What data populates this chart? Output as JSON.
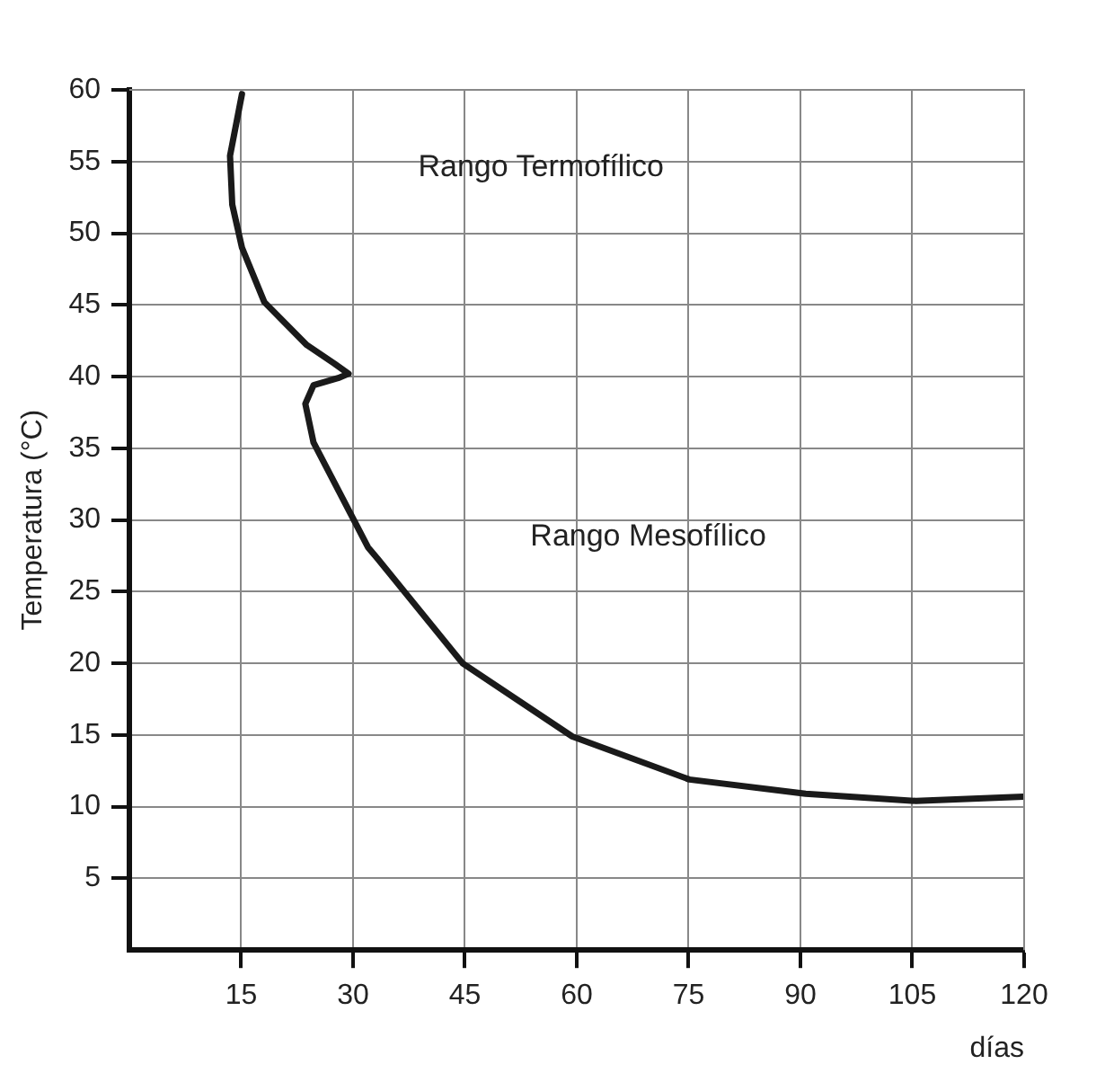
{
  "chart_data": {
    "type": "line",
    "xlabel": "días",
    "ylabel": "Temperatura (°C)",
    "series": [
      {
        "color": "#1a1a1a",
        "x": [
          15.1,
          13.5,
          13.8,
          15.1,
          18.1,
          23.8,
          27.5,
          29.4,
          28,
          24.7,
          23.6,
          24.7,
          28.1,
          32,
          33.3,
          44.7,
          59.4,
          75.1,
          90.7,
          105.5,
          119.9
        ],
        "values": [
          59.7,
          55.4,
          52,
          49,
          45.2,
          42.2,
          40.9,
          40.2,
          39.9,
          39.4,
          38.1,
          35.4,
          32,
          28.1,
          27.3,
          20,
          14.9,
          11.9,
          10.9,
          10.4,
          10.7
        ]
      }
    ],
    "xlim": [
      0,
      120
    ],
    "ylim": [
      0,
      60
    ],
    "xticks": [
      15,
      30,
      45,
      60,
      75,
      90,
      105,
      120
    ],
    "yticks": [
      5,
      10,
      15,
      20,
      25,
      30,
      35,
      40,
      45,
      50,
      55,
      60
    ],
    "grid": true,
    "marker": "none",
    "line_style": "solid",
    "annotations": [
      "Rango Termofílico",
      "Rango Mesofílico"
    ]
  }
}
